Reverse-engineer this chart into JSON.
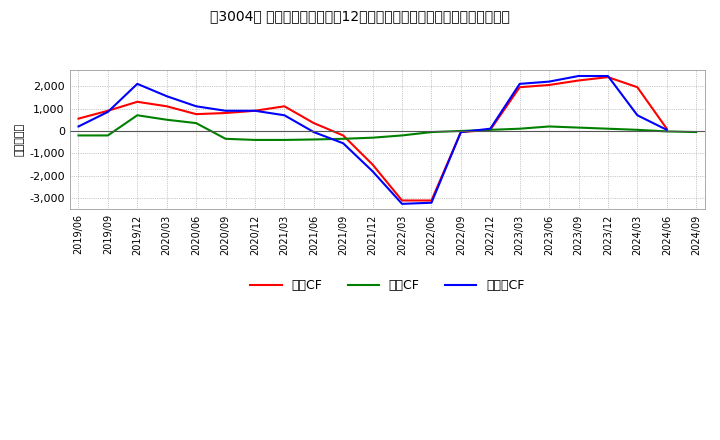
{
  "title": "［3004］ キャッシュフローの12か月移動合計の対前年同期増減額の推移",
  "ylabel": "（百万円）",
  "x_labels": [
    "2019/06",
    "2019/09",
    "2019/12",
    "2020/03",
    "2020/06",
    "2020/09",
    "2020/12",
    "2021/03",
    "2021/06",
    "2021/09",
    "2021/12",
    "2022/03",
    "2022/06",
    "2022/09",
    "2022/12",
    "2023/03",
    "2023/06",
    "2023/09",
    "2023/12",
    "2024/03",
    "2024/06",
    "2024/09"
  ],
  "operating_cf": [
    550,
    900,
    1300,
    1100,
    750,
    800,
    900,
    1100,
    350,
    -200,
    -1500,
    -3100,
    -3100,
    -50,
    50,
    1950,
    2050,
    2250,
    2400,
    1950,
    100,
    null
  ],
  "investing_cf": [
    -200,
    -200,
    700,
    500,
    350,
    -350,
    -400,
    -400,
    -380,
    -350,
    -300,
    -200,
    -50,
    0,
    50,
    100,
    200,
    150,
    100,
    50,
    -20,
    -50
  ],
  "free_cf": [
    200,
    850,
    2100,
    1550,
    1100,
    900,
    900,
    700,
    -50,
    -550,
    -1800,
    -3250,
    -3200,
    -50,
    100,
    2100,
    2200,
    2450,
    2450,
    700,
    50,
    null
  ],
  "ylim": [
    -3500,
    2700
  ],
  "yticks": [
    -3000,
    -2000,
    -1000,
    0,
    1000,
    2000
  ],
  "operating_color": "#ff0000",
  "investing_color": "#008000",
  "free_color": "#0000ff",
  "background_color": "#ffffff",
  "grid_color": "#999999"
}
